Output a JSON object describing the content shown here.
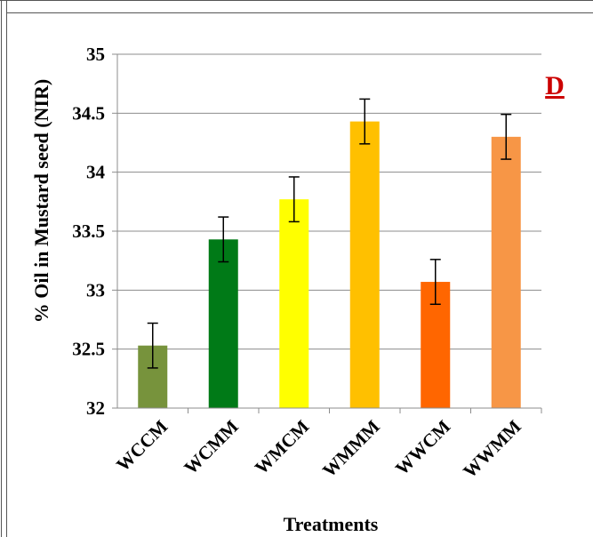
{
  "chart_data": {
    "type": "bar",
    "panel_label": "D",
    "xlabel": "Treatments",
    "ylabel": "% Oil in Mustard seed (NIR)",
    "ylim": [
      32,
      35
    ],
    "yticks": [
      32,
      32.5,
      33,
      33.5,
      34,
      34.5,
      35
    ],
    "ytick_labels": [
      "32",
      "32.5",
      "33",
      "33.5",
      "34",
      "34.5",
      "35"
    ],
    "grid": true,
    "categories": [
      "WCCM",
      "WCMM",
      "WMCM",
      "WMMM",
      "WWCM",
      "WWMM"
    ],
    "values": [
      32.53,
      33.43,
      33.77,
      34.43,
      33.07,
      34.3
    ],
    "errors": [
      0.19,
      0.19,
      0.19,
      0.19,
      0.19,
      0.19
    ],
    "colors": [
      "#77933c",
      "#007a17",
      "#ffff00",
      "#ffc000",
      "#ff6600",
      "#f79646"
    ]
  }
}
